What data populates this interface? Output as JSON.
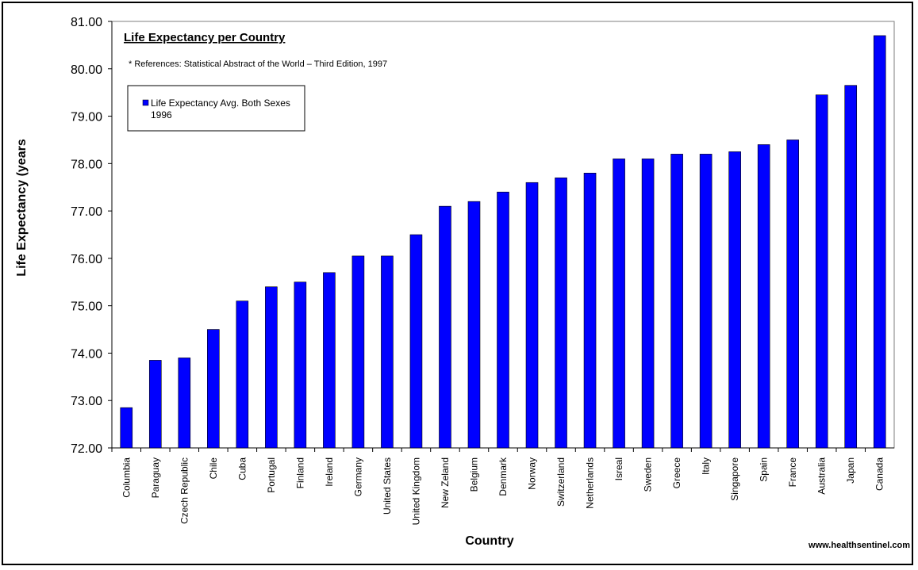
{
  "chart_data": {
    "type": "bar",
    "title": "Life Expectancy per Country",
    "reference_note": "* References: Statistical Abstract of the World – Third Edition, 1997",
    "xlabel": "Country",
    "ylabel": "Life Expectancy (years",
    "ylim": [
      72,
      81
    ],
    "y_ticks": [
      "72.00",
      "73.00",
      "74.00",
      "75.00",
      "76.00",
      "77.00",
      "78.00",
      "79.00",
      "80.00",
      "81.00"
    ],
    "grid": false,
    "legend_position": "top-left",
    "categories": [
      "Columbia",
      "Paraguay",
      "Czech Republic",
      "Chile",
      "Cuba",
      "Portugal",
      "Finland",
      "Ireland",
      "Germany",
      "United States",
      "United Kingdom",
      "New Zeland",
      "Belgium",
      "Denmark",
      "Norway",
      "Switzerland",
      "Netherlands",
      "Isreal",
      "Sweden",
      "Greece",
      "Italy",
      "Singapore",
      "Spain",
      "France",
      "Australia",
      "Japan",
      "Canada"
    ],
    "series": [
      {
        "name_line1": "Life Expectancy Avg. Both Sexes",
        "name_line2": "1996",
        "color": "#0000ff",
        "values": [
          72.85,
          73.85,
          73.9,
          74.5,
          75.1,
          75.4,
          75.5,
          75.7,
          76.05,
          76.05,
          76.5,
          77.1,
          77.2,
          77.4,
          77.6,
          77.7,
          77.8,
          78.1,
          78.1,
          78.2,
          78.2,
          78.25,
          78.4,
          78.5,
          79.45,
          79.65,
          80.7
        ]
      }
    ]
  },
  "footer": {
    "url": "www.healthsentinel.com"
  }
}
